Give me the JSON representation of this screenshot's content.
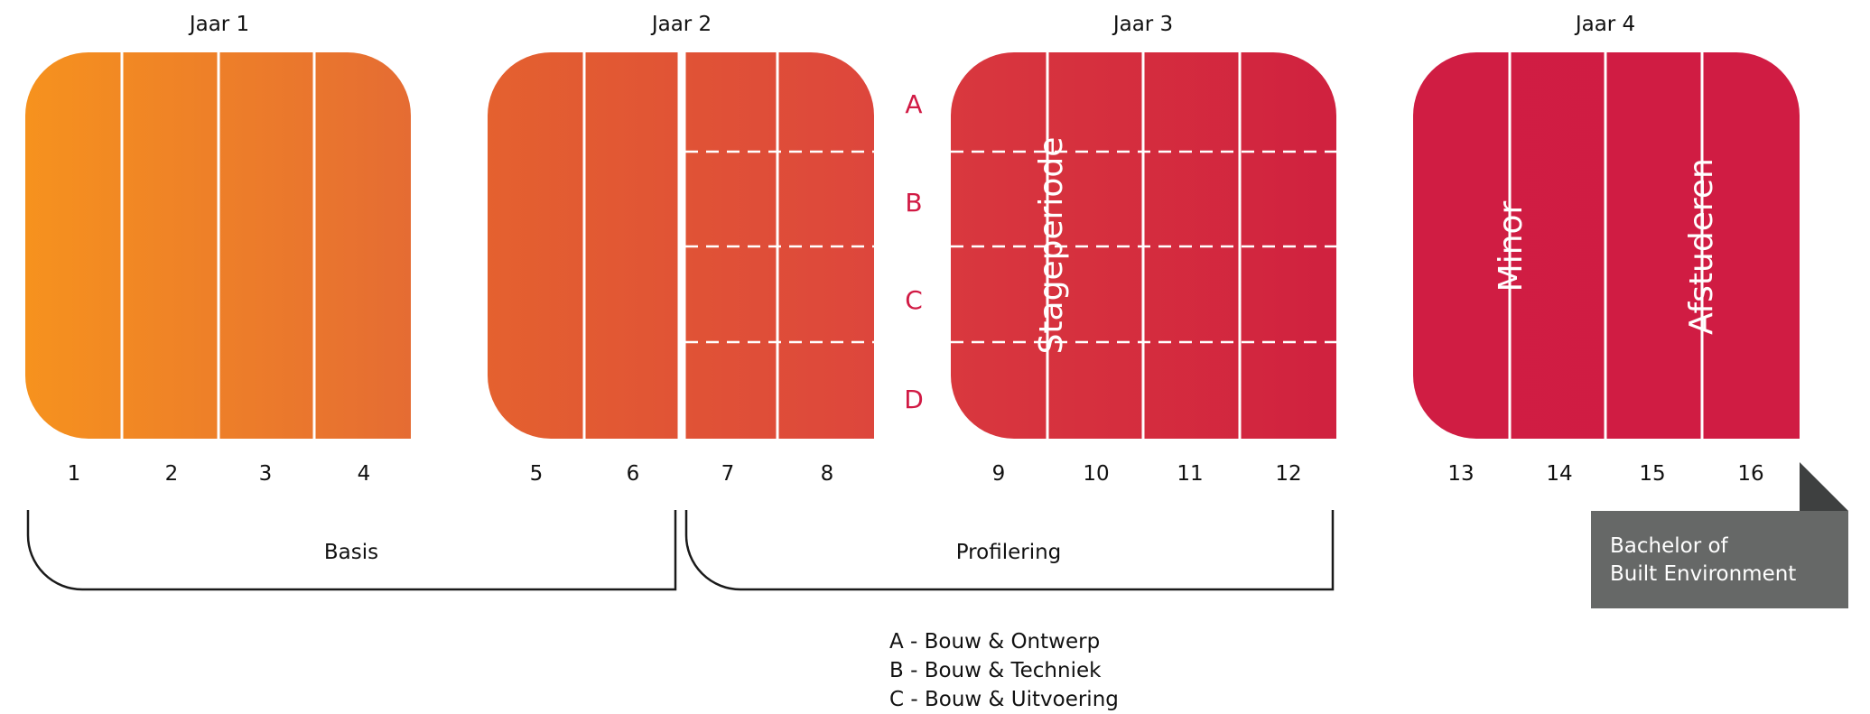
{
  "years": [
    {
      "label": "Jaar 1"
    },
    {
      "label": "Jaar 2"
    },
    {
      "label": "Jaar 3"
    },
    {
      "label": "Jaar 4"
    }
  ],
  "periods": [
    "1",
    "2",
    "3",
    "4",
    "5",
    "6",
    "7",
    "8",
    "9",
    "10",
    "11",
    "12",
    "13",
    "14",
    "15",
    "16"
  ],
  "tracks": [
    "A",
    "B",
    "C",
    "D"
  ],
  "block_labels": {
    "stage": "Stageperiode",
    "minor": "Minor",
    "afstuderen": "Afstuderen"
  },
  "phases": {
    "basis": "Basis",
    "profilering": "Profilering"
  },
  "legend": [
    "A - Bouw & Ontwerp",
    "B - Bouw & Techniek",
    "C - Bouw & Uitvoering"
  ],
  "bachelor": {
    "line1": "Bachelor of",
    "line2": "Built Environment"
  },
  "colors": {
    "orange": "#f6921e",
    "orange_red": "#e4612f",
    "red": "#d6303f",
    "crimson": "#d01c43",
    "track_label": "#d11a44",
    "badge_gray": "#666867",
    "badge_fold": "#3e4040"
  }
}
